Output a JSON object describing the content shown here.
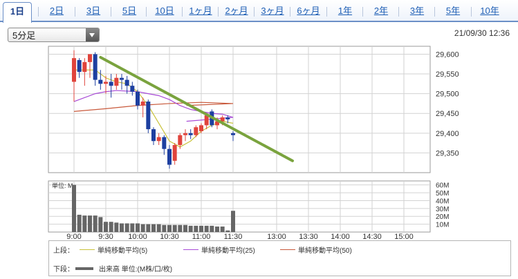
{
  "tabs": [
    {
      "label": "1日",
      "active": true
    },
    {
      "label": "2日"
    },
    {
      "label": "3日"
    },
    {
      "label": "5日"
    },
    {
      "label": "10日"
    },
    {
      "label": "1ヶ月"
    },
    {
      "label": "2ヶ月"
    },
    {
      "label": "3ヶ月"
    },
    {
      "label": "6ヶ月"
    },
    {
      "label": "1年"
    },
    {
      "label": "2年"
    },
    {
      "label": "3年"
    },
    {
      "label": "5年"
    },
    {
      "label": "10年"
    }
  ],
  "interval_select": {
    "value": "5分足"
  },
  "timestamp": "21/09/30 12:36",
  "legend": {
    "upper_label": "上段：",
    "lower_label": "下段：",
    "ma5": "単純移動平均(5)",
    "ma25": "単純移動平均(25)",
    "ma50": "単純移動平均(50)",
    "volume": "出来高 単位:(M株/口/枚)"
  },
  "colors": {
    "up": "#e0443c",
    "down": "#1d3fa0",
    "ma5": "#c9c23a",
    "ma25": "#a84bd6",
    "ma50": "#c8583a",
    "trendline": "#7aa33e",
    "volume": "#666666",
    "grid": "#d2d2d2"
  },
  "chart_data": {
    "type": "candlestick",
    "x_ticks": [
      "9:00",
      "9:30",
      "10:00",
      "10:30",
      "11:00",
      "11:30",
      "13:00",
      "13:30",
      "14:00",
      "14:30",
      "15:00"
    ],
    "price_ticks": [
      "29,600",
      "29,550",
      "29,500",
      "29,450",
      "29,400",
      "29,350"
    ],
    "price_ylim": [
      29300,
      29620
    ],
    "candles": [
      {
        "t": "9:00",
        "o": 29530,
        "h": 29610,
        "l": 29480,
        "c": 29590
      },
      {
        "t": "9:05",
        "o": 29585,
        "h": 29590,
        "l": 29540,
        "c": 29555
      },
      {
        "t": "9:10",
        "o": 29555,
        "h": 29590,
        "l": 29520,
        "c": 29580
      },
      {
        "t": "9:15",
        "o": 29580,
        "h": 29600,
        "l": 29540,
        "c": 29600
      },
      {
        "t": "9:20",
        "o": 29600,
        "h": 29605,
        "l": 29520,
        "c": 29535
      },
      {
        "t": "9:25",
        "o": 29535,
        "h": 29560,
        "l": 29510,
        "c": 29525
      },
      {
        "t": "9:30",
        "o": 29525,
        "h": 29545,
        "l": 29500,
        "c": 29530
      },
      {
        "t": "9:35",
        "o": 29530,
        "h": 29550,
        "l": 29490,
        "c": 29520
      },
      {
        "t": "9:40",
        "o": 29520,
        "h": 29550,
        "l": 29510,
        "c": 29540
      },
      {
        "t": "9:45",
        "o": 29540,
        "h": 29550,
        "l": 29510,
        "c": 29535
      },
      {
        "t": "9:50",
        "o": 29535,
        "h": 29545,
        "l": 29500,
        "c": 29520
      },
      {
        "t": "9:55",
        "o": 29520,
        "h": 29530,
        "l": 29495,
        "c": 29505
      },
      {
        "t": "10:00",
        "o": 29505,
        "h": 29510,
        "l": 29460,
        "c": 29470
      },
      {
        "t": "10:05",
        "o": 29470,
        "h": 29490,
        "l": 29440,
        "c": 29480
      },
      {
        "t": "10:10",
        "o": 29480,
        "h": 29485,
        "l": 29400,
        "c": 29410
      },
      {
        "t": "10:15",
        "o": 29410,
        "h": 29415,
        "l": 29370,
        "c": 29380
      },
      {
        "t": "10:20",
        "o": 29380,
        "h": 29400,
        "l": 29370,
        "c": 29390
      },
      {
        "t": "10:25",
        "o": 29390,
        "h": 29395,
        "l": 29345,
        "c": 29360
      },
      {
        "t": "10:30",
        "o": 29360,
        "h": 29370,
        "l": 29310,
        "c": 29320
      },
      {
        "t": "10:35",
        "o": 29330,
        "h": 29375,
        "l": 29320,
        "c": 29370
      },
      {
        "t": "10:40",
        "o": 29370,
        "h": 29400,
        "l": 29360,
        "c": 29395
      },
      {
        "t": "10:45",
        "o": 29395,
        "h": 29410,
        "l": 29380,
        "c": 29400
      },
      {
        "t": "10:50",
        "o": 29400,
        "h": 29410,
        "l": 29385,
        "c": 29395
      },
      {
        "t": "10:55",
        "o": 29395,
        "h": 29420,
        "l": 29390,
        "c": 29415
      },
      {
        "t": "11:00",
        "o": 29405,
        "h": 29425,
        "l": 29400,
        "c": 29420
      },
      {
        "t": "11:05",
        "o": 29420,
        "h": 29450,
        "l": 29410,
        "c": 29445
      },
      {
        "t": "11:10",
        "o": 29455,
        "h": 29460,
        "l": 29415,
        "c": 29420
      },
      {
        "t": "11:15",
        "o": 29420,
        "h": 29440,
        "l": 29410,
        "c": 29430
      },
      {
        "t": "11:20",
        "o": 29430,
        "h": 29445,
        "l": 29420,
        "c": 29440
      },
      {
        "t": "11:25",
        "o": 29440,
        "h": 29445,
        "l": 29425,
        "c": 29435
      },
      {
        "t": "11:30",
        "o": 29400,
        "h": 29405,
        "l": 29380,
        "c": 29395
      }
    ],
    "ma5": [
      [
        "9:00",
        29560
      ],
      [
        "9:20",
        29560
      ],
      [
        "9:30",
        29540
      ],
      [
        "9:40",
        29530
      ],
      [
        "9:50",
        29525
      ],
      [
        "10:00",
        29505
      ],
      [
        "10:10",
        29470
      ],
      [
        "10:20",
        29425
      ],
      [
        "10:30",
        29380
      ],
      [
        "10:40",
        29365
      ],
      [
        "10:50",
        29380
      ],
      [
        "11:00",
        29405
      ],
      [
        "11:10",
        29420
      ],
      [
        "11:20",
        29430
      ],
      [
        "11:30",
        29425
      ]
    ],
    "ma25": [
      [
        "9:00",
        29480
      ],
      [
        "9:10",
        29490
      ],
      [
        "9:20",
        29500
      ],
      [
        "9:30",
        29505
      ],
      [
        "9:40",
        29508
      ],
      [
        "10:00",
        29505
      ],
      [
        "10:10",
        29500
      ],
      [
        "10:20",
        29495
      ],
      [
        "10:30",
        29485
      ],
      [
        "10:40",
        29470
      ],
      [
        "10:50",
        29460
      ],
      [
        "11:00",
        29455
      ],
      [
        "11:10",
        29450
      ],
      [
        "11:20",
        29448
      ],
      [
        "11:30",
        29440
      ],
      [
        "11:35",
        29430
      ]
    ],
    "ma50": [
      [
        "9:00",
        29455
      ],
      [
        "9:30",
        29462
      ],
      [
        "10:00",
        29470
      ],
      [
        "10:30",
        29475
      ],
      [
        "11:00",
        29478
      ],
      [
        "11:30",
        29475
      ],
      [
        "11:35",
        29470
      ]
    ],
    "trendline": {
      "from": [
        "9:25",
        29592
      ],
      "to": [
        "13:15",
        29330
      ]
    },
    "volume_unit_label": "単位: M",
    "volume_ticks": [
      "60M",
      "50M",
      "40M",
      "30M",
      "20M",
      "10M"
    ],
    "volume_ylim": [
      0,
      65
    ],
    "volume": [
      60,
      22,
      21,
      21,
      21,
      19,
      13,
      13,
      12,
      11,
      11,
      11,
      11,
      10,
      10,
      10,
      10,
      9,
      9,
      9,
      9,
      9,
      8,
      8,
      8,
      8,
      8,
      7,
      7,
      2,
      27
    ]
  }
}
